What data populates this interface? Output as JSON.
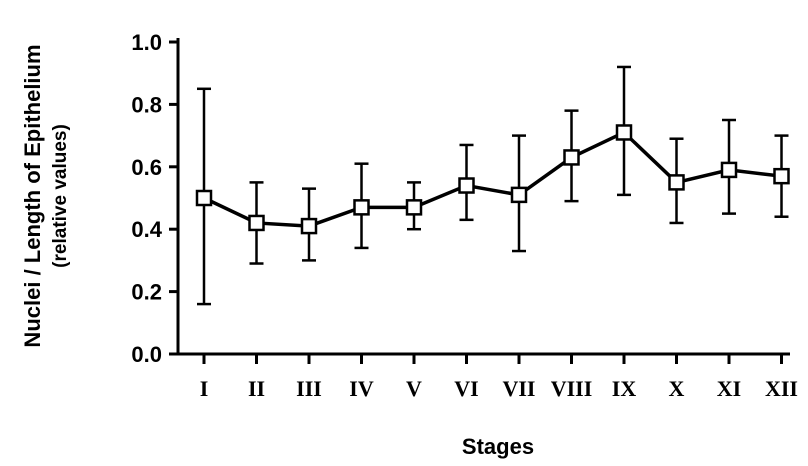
{
  "chart_data": {
    "type": "line",
    "xlabel": "Stages",
    "ylabel": "Nuclei / Length of Epithelium",
    "ylabel_sub": "(relative values)",
    "ylim": [
      0.0,
      1.0
    ],
    "yticks": [
      "0.0",
      "0.2",
      "0.4",
      "0.6",
      "0.8",
      "1.0"
    ],
    "categories": [
      "I",
      "II",
      "III",
      "IV",
      "V",
      "VI",
      "VII",
      "VIII",
      "IX",
      "X",
      "XI",
      "XII"
    ],
    "series": [
      {
        "values": [
          0.5,
          0.42,
          0.41,
          0.47,
          0.47,
          0.54,
          0.51,
          0.63,
          0.71,
          0.55,
          0.59,
          0.57
        ],
        "error_low": [
          0.16,
          0.29,
          0.3,
          0.34,
          0.4,
          0.43,
          0.33,
          0.49,
          0.51,
          0.42,
          0.45,
          0.44
        ],
        "error_high": [
          0.85,
          0.55,
          0.53,
          0.61,
          0.55,
          0.67,
          0.7,
          0.78,
          0.92,
          0.69,
          0.75,
          0.7
        ],
        "marker": "open-square",
        "color": "#000000"
      }
    ],
    "grid": false,
    "legend": "none"
  }
}
